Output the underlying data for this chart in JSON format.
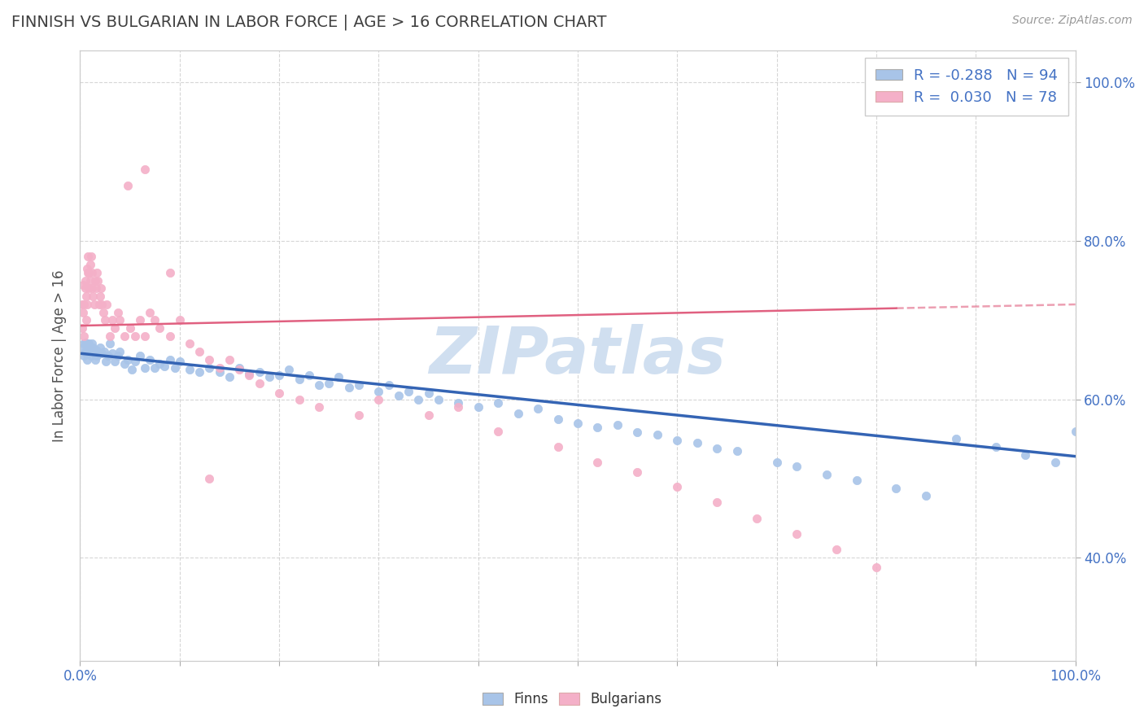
{
  "title": "FINNISH VS BULGARIAN IN LABOR FORCE | AGE > 16 CORRELATION CHART",
  "source": "Source: ZipAtlas.com",
  "ylabel": "In Labor Force | Age > 16",
  "xlim": [
    0.0,
    1.0
  ],
  "ylim": [
    0.27,
    1.04
  ],
  "x_ticks": [
    0.0,
    0.1,
    0.2,
    0.3,
    0.4,
    0.5,
    0.6,
    0.7,
    0.8,
    0.9,
    1.0
  ],
  "y_ticks": [
    0.4,
    0.6,
    0.8,
    1.0
  ],
  "y_tick_labels": [
    "40.0%",
    "60.0%",
    "80.0%",
    "100.0%"
  ],
  "finn_color": "#a8c4e8",
  "bulgarian_color": "#f4b0c8",
  "finn_line_color": "#3464b4",
  "bulgarian_line_color": "#e06080",
  "watermark": "ZIPatlas",
  "watermark_color": "#d0dff0",
  "legend_finn_label": "R = -0.288   N = 94",
  "legend_bulg_label": "R =  0.030   N = 78",
  "background_color": "#ffffff",
  "grid_color": "#cccccc",
  "title_color": "#404040",
  "axis_label_color": "#505050",
  "tick_label_color": "#4472c4",
  "finn_line_start_y": 0.658,
  "finn_line_end_y": 0.528,
  "bulg_line_start_y": 0.693,
  "bulg_line_end_y": 0.715,
  "bulg_line_end_x": 0.82,
  "finn_x": [
    0.003,
    0.004,
    0.004,
    0.005,
    0.005,
    0.006,
    0.007,
    0.007,
    0.008,
    0.009,
    0.01,
    0.011,
    0.012,
    0.013,
    0.014,
    0.015,
    0.016,
    0.017,
    0.018,
    0.02,
    0.022,
    0.024,
    0.026,
    0.028,
    0.03,
    0.032,
    0.035,
    0.038,
    0.04,
    0.045,
    0.048,
    0.052,
    0.055,
    0.06,
    0.065,
    0.07,
    0.075,
    0.08,
    0.085,
    0.09,
    0.095,
    0.1,
    0.11,
    0.12,
    0.13,
    0.14,
    0.15,
    0.16,
    0.17,
    0.18,
    0.19,
    0.2,
    0.21,
    0.22,
    0.23,
    0.24,
    0.25,
    0.26,
    0.27,
    0.28,
    0.3,
    0.31,
    0.32,
    0.33,
    0.34,
    0.35,
    0.36,
    0.38,
    0.4,
    0.42,
    0.44,
    0.46,
    0.48,
    0.5,
    0.52,
    0.54,
    0.56,
    0.58,
    0.6,
    0.62,
    0.64,
    0.66,
    0.7,
    0.72,
    0.75,
    0.78,
    0.82,
    0.85,
    0.88,
    0.92,
    0.95,
    0.98,
    1.0,
    0.008
  ],
  "finn_y": [
    0.665,
    0.67,
    0.655,
    0.66,
    0.672,
    0.658,
    0.668,
    0.65,
    0.662,
    0.67,
    0.66,
    0.655,
    0.67,
    0.665,
    0.658,
    0.65,
    0.662,
    0.655,
    0.66,
    0.665,
    0.658,
    0.66,
    0.648,
    0.655,
    0.67,
    0.658,
    0.648,
    0.655,
    0.66,
    0.645,
    0.65,
    0.638,
    0.648,
    0.655,
    0.64,
    0.65,
    0.64,
    0.645,
    0.642,
    0.65,
    0.64,
    0.648,
    0.638,
    0.635,
    0.64,
    0.635,
    0.628,
    0.64,
    0.632,
    0.635,
    0.628,
    0.63,
    0.638,
    0.625,
    0.63,
    0.618,
    0.62,
    0.628,
    0.615,
    0.618,
    0.61,
    0.618,
    0.605,
    0.61,
    0.6,
    0.608,
    0.6,
    0.595,
    0.59,
    0.595,
    0.582,
    0.588,
    0.575,
    0.57,
    0.565,
    0.568,
    0.558,
    0.555,
    0.548,
    0.545,
    0.538,
    0.535,
    0.52,
    0.515,
    0.505,
    0.498,
    0.488,
    0.478,
    0.55,
    0.54,
    0.53,
    0.52,
    0.56,
    0.665
  ],
  "bulg_x": [
    0.002,
    0.002,
    0.003,
    0.003,
    0.004,
    0.004,
    0.005,
    0.005,
    0.006,
    0.006,
    0.007,
    0.007,
    0.008,
    0.008,
    0.009,
    0.009,
    0.01,
    0.01,
    0.011,
    0.012,
    0.012,
    0.013,
    0.014,
    0.015,
    0.016,
    0.017,
    0.018,
    0.019,
    0.02,
    0.021,
    0.022,
    0.023,
    0.025,
    0.027,
    0.03,
    0.032,
    0.035,
    0.038,
    0.04,
    0.045,
    0.05,
    0.055,
    0.06,
    0.065,
    0.07,
    0.075,
    0.08,
    0.09,
    0.1,
    0.11,
    0.12,
    0.13,
    0.14,
    0.15,
    0.16,
    0.17,
    0.18,
    0.2,
    0.22,
    0.24,
    0.28,
    0.3,
    0.35,
    0.38,
    0.42,
    0.48,
    0.52,
    0.56,
    0.6,
    0.64,
    0.68,
    0.72,
    0.76,
    0.8,
    0.048,
    0.065,
    0.09,
    0.13
  ],
  "bulg_y": [
    0.72,
    0.69,
    0.71,
    0.745,
    0.68,
    0.72,
    0.74,
    0.75,
    0.7,
    0.73,
    0.765,
    0.72,
    0.76,
    0.78,
    0.76,
    0.74,
    0.75,
    0.77,
    0.78,
    0.74,
    0.76,
    0.73,
    0.72,
    0.75,
    0.74,
    0.76,
    0.75,
    0.72,
    0.73,
    0.74,
    0.72,
    0.71,
    0.7,
    0.72,
    0.68,
    0.7,
    0.69,
    0.71,
    0.7,
    0.68,
    0.69,
    0.68,
    0.7,
    0.68,
    0.71,
    0.7,
    0.69,
    0.68,
    0.7,
    0.67,
    0.66,
    0.65,
    0.64,
    0.65,
    0.638,
    0.63,
    0.62,
    0.608,
    0.6,
    0.59,
    0.58,
    0.6,
    0.58,
    0.59,
    0.56,
    0.54,
    0.52,
    0.508,
    0.49,
    0.47,
    0.45,
    0.43,
    0.41,
    0.388,
    0.87,
    0.89,
    0.76,
    0.5
  ]
}
